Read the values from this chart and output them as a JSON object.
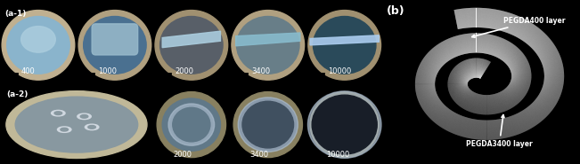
{
  "fig_width": 6.51,
  "fig_height": 1.85,
  "dpi": 100,
  "panel_a1_label": "(a-1)",
  "panel_a2_label": "(a-2)",
  "panel_b_label": "(b)",
  "a1_labels": [
    "400",
    "1000",
    "2000",
    "3400",
    "10000"
  ],
  "a2_labels": [
    "2000",
    "3400",
    "10000"
  ],
  "b_label_top": "PEGDA400 layer",
  "b_label_bottom": "PEGDA3400 layer",
  "label_color": "white",
  "b_label_color": "white",
  "border_color": "black",
  "a1_bg_colors": [
    "#7aa8c0",
    "#4a7a96",
    "#606d78",
    "#6a8a94",
    "#3a5a6a"
  ],
  "a2_bg_colors": [
    "#909090",
    "#7090a8",
    "#506880",
    "#2a4060"
  ],
  "b_bg_color": "#000000"
}
